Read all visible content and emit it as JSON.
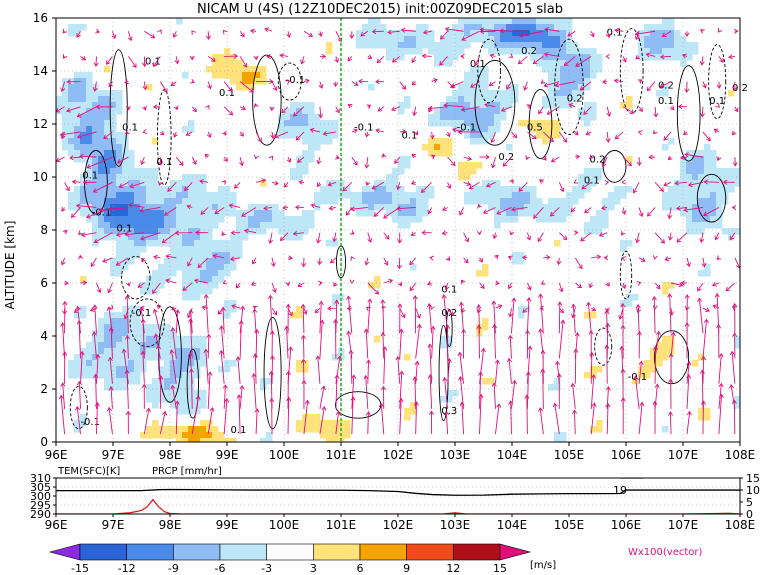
{
  "title": "NICAM U (4S) (12Z10DEC2015) init:00Z09DEC2015 slab",
  "colors": {
    "vector": "#e0107a",
    "precip": "#e02020",
    "lon_marker": "#22aa22",
    "contour": "#000000"
  },
  "chart_data": [
    {
      "type": "heatmap",
      "title": "NICAM U (4S) (12Z10DEC2015) init:00Z09DEC2015 slab",
      "x_ticks": [
        "96E",
        "97E",
        "98E",
        "99E",
        "100E",
        "101E",
        "102E",
        "103E",
        "104E",
        "105E",
        "106E",
        "107E",
        "108E"
      ],
      "x_range": [
        96,
        108
      ],
      "y_label": "ALTITUDE [km]",
      "y_range": [
        0,
        16
      ],
      "y_ticks": [
        "0",
        "2",
        "4",
        "6",
        "8",
        "10",
        "12",
        "14",
        "16"
      ],
      "vertical_marker_lon": 101,
      "contour_labels": [
        {
          "text": "0.1",
          "lon": 97.7,
          "z": 14.4
        },
        {
          "text": "-0.1",
          "lon": 100.2,
          "z": 13.7
        },
        {
          "text": "0.1",
          "lon": 99.0,
          "z": 13.2
        },
        {
          "text": "0.1",
          "lon": 97.3,
          "z": 11.9
        },
        {
          "text": "0.1",
          "lon": 97.9,
          "z": 10.6
        },
        {
          "text": "0.1",
          "lon": 96.6,
          "z": 10.1
        },
        {
          "text": "-0.1",
          "lon": 96.8,
          "z": 8.7
        },
        {
          "text": "0.1",
          "lon": 97.2,
          "z": 8.1
        },
        {
          "text": "-0.1",
          "lon": 101.4,
          "z": 11.9
        },
        {
          "text": "0.1",
          "lon": 102.2,
          "z": 11.6
        },
        {
          "text": "-0.1",
          "lon": 103.2,
          "z": 11.9
        },
        {
          "text": "0.2",
          "lon": 103.9,
          "z": 10.8
        },
        {
          "text": "0.5",
          "lon": 104.4,
          "z": 11.9
        },
        {
          "text": "0.2",
          "lon": 104.3,
          "z": 14.8
        },
        {
          "text": "0.2",
          "lon": 105.1,
          "z": 13.0
        },
        {
          "text": "0.2",
          "lon": 105.5,
          "z": 10.7
        },
        {
          "text": "0.2",
          "lon": 106.7,
          "z": 13.5
        },
        {
          "text": "0.1",
          "lon": 106.7,
          "z": 12.9
        },
        {
          "text": "0.1",
          "lon": 107.6,
          "z": 12.9
        },
        {
          "text": "0.2",
          "lon": 108.0,
          "z": 13.4
        },
        {
          "text": "0.1",
          "lon": 105.8,
          "z": 15.5
        },
        {
          "text": "0.1",
          "lon": 103.4,
          "z": 14.3
        },
        {
          "text": "0.1",
          "lon": 105.4,
          "z": 9.9
        },
        {
          "text": "0.1",
          "lon": 102.9,
          "z": 5.8
        },
        {
          "text": "0.2",
          "lon": 102.9,
          "z": 4.9
        },
        {
          "text": "-0.1",
          "lon": 97.5,
          "z": 4.9
        },
        {
          "text": "-0.1",
          "lon": 106.2,
          "z": 2.5
        },
        {
          "text": "-0.1",
          "lon": 96.6,
          "z": 0.8
        },
        {
          "text": "0.1",
          "lon": 99.2,
          "z": 0.5
        },
        {
          "text": "0.3",
          "lon": 102.9,
          "z": 1.2
        }
      ]
    },
    {
      "type": "line",
      "x_range": [
        96,
        108
      ],
      "x_ticks": [
        "96E",
        "97E",
        "98E",
        "99E",
        "100E",
        "101E",
        "102E",
        "103E",
        "104E",
        "105E",
        "106E",
        "107E",
        "108E"
      ],
      "series": [
        {
          "name": "TEM(SFC)[K]",
          "axis": "left",
          "x": [
            96,
            96.5,
            97,
            97.5,
            97.8,
            98,
            98.5,
            99,
            99.5,
            100,
            100.5,
            101,
            101.5,
            102,
            102.3,
            102.6,
            103,
            103.5,
            104,
            104.5,
            105,
            105.5,
            105.9,
            106,
            106.5,
            107,
            107.5,
            108
          ],
          "values": [
            303,
            303,
            303,
            303,
            303.5,
            303.6,
            303.5,
            303.4,
            303.3,
            303.3,
            303.2,
            303.2,
            303,
            302.5,
            301.5,
            300.8,
            300.4,
            300.5,
            301,
            301.2,
            301.3,
            301.3,
            301.4,
            303.3,
            303.3,
            303.3,
            303.3,
            303.3
          ]
        },
        {
          "name": "PRCP [mm/hr]",
          "axis": "right",
          "x": [
            96,
            97,
            97.3,
            97.5,
            97.6,
            97.7,
            97.8,
            97.9,
            98,
            98.2,
            99,
            100,
            101,
            102,
            102.8,
            103,
            103.2,
            104,
            105,
            106,
            107,
            107.6,
            107.8,
            108
          ],
          "values": [
            0,
            0,
            0.5,
            1.5,
            3,
            6,
            3,
            1,
            0.2,
            0,
            0,
            0,
            0,
            0,
            0,
            0.5,
            0,
            0,
            0,
            0,
            0,
            0.2,
            0.3,
            0
          ]
        }
      ],
      "left_ylim": [
        290,
        310
      ],
      "left_ticks": [
        "290",
        "295",
        "300",
        "305",
        "310"
      ],
      "right_ylim": [
        0,
        15
      ],
      "right_ticks": [
        "0",
        "5",
        "10",
        "15"
      ],
      "annotation": "19"
    }
  ],
  "colorbar": {
    "unit": "[m/s]",
    "tick_labels": [
      "-15",
      "-12",
      "-9",
      "-6",
      "-3",
      "3",
      "6",
      "9",
      "12",
      "15"
    ],
    "colors": [
      "#8a2be2",
      "#2b63d8",
      "#4a8ae8",
      "#8fbcf5",
      "#bde6f7",
      "#ffffff",
      "#ffe27a",
      "#f5a300",
      "#f04a1a",
      "#b0101a",
      "#e0107a"
    ],
    "vector_label": "Wx100(vector)"
  }
}
